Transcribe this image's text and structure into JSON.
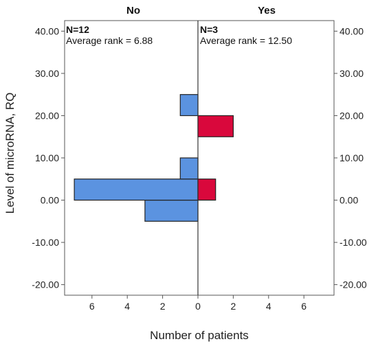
{
  "chart_data": {
    "type": "bar",
    "orientation": "horizontal",
    "ylabel": "Level of microRNA, RQ",
    "xlabel": "Number of patients",
    "ylim": [
      -22.5,
      42.5
    ],
    "y_ticks": [
      "40.00",
      "30.00",
      "20.00",
      "10.00",
      "0.00",
      "-10.00",
      "-20.00"
    ],
    "y_tick_values": [
      40,
      30,
      20,
      10,
      0,
      -10,
      -20
    ],
    "x_ticks_left": [
      "6",
      "4",
      "2",
      "0"
    ],
    "x_tick_values_left": [
      6,
      4,
      2,
      0
    ],
    "x_ticks_right": [
      "2",
      "4",
      "6"
    ],
    "x_tick_values_right": [
      2,
      4,
      6
    ],
    "xlim": [
      0,
      7.5
    ],
    "bin_width": 5,
    "panels": [
      {
        "title": "No",
        "n_label": "N=12",
        "rank_label": "Average rank = 6.88",
        "side": "left",
        "color": "#5b93e0",
        "bins": [
          {
            "y_from": -5,
            "y_to": 0,
            "count": 3
          },
          {
            "y_from": 0,
            "y_to": 5,
            "count": 7
          },
          {
            "y_from": 5,
            "y_to": 10,
            "count": 1
          },
          {
            "y_from": 20,
            "y_to": 25,
            "count": 1
          }
        ]
      },
      {
        "title": "Yes",
        "n_label": "N=3",
        "rank_label": "Average rank = 12.50",
        "side": "right",
        "color": "#d9083c",
        "bins": [
          {
            "y_from": 0,
            "y_to": 5,
            "count": 1
          },
          {
            "y_from": 15,
            "y_to": 20,
            "count": 2
          }
        ]
      }
    ]
  }
}
